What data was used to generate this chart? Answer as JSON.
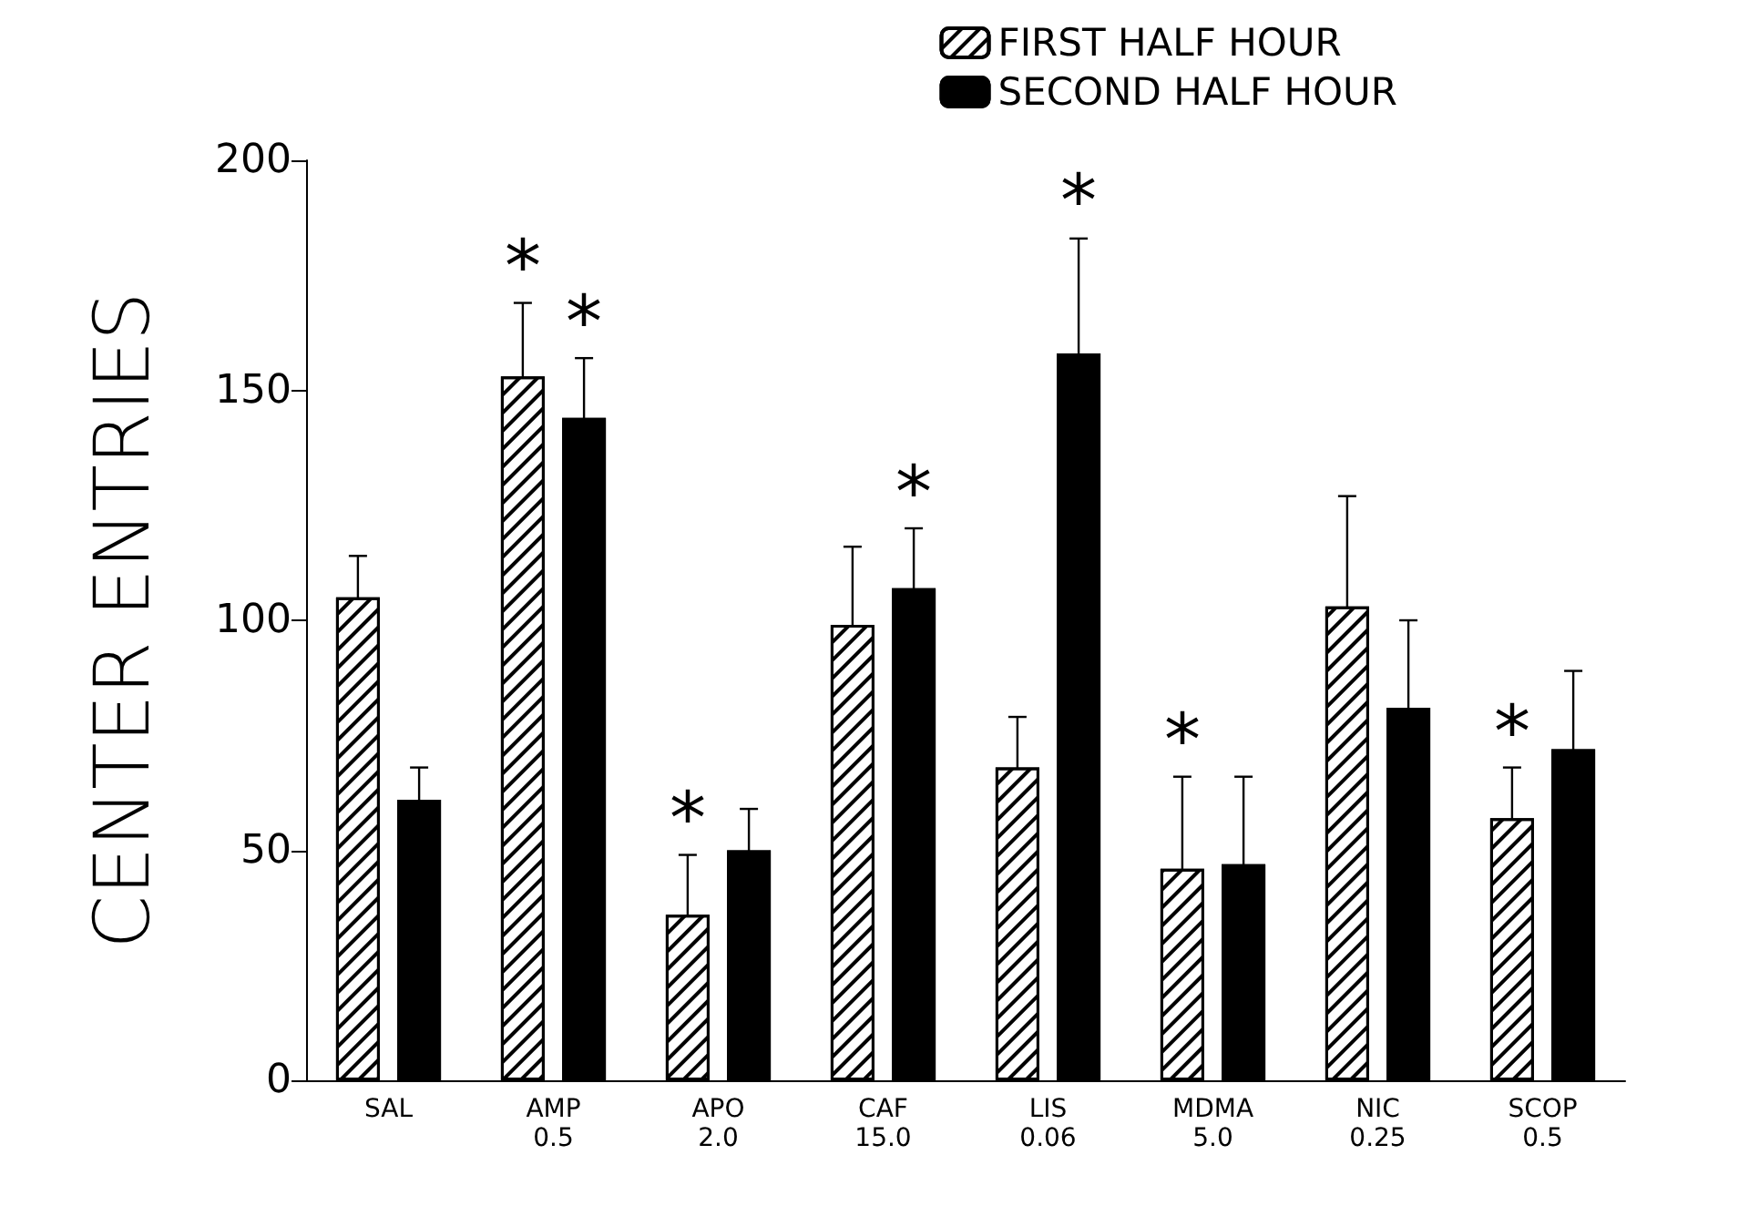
{
  "chart_data": {
    "type": "bar",
    "ylabel": "CENTER ENTRIES",
    "categories": [
      "SAL",
      "AMP\n0.5",
      "APO\n2.0",
      "CAF\n15.0",
      "LIS\n0.06",
      "MDMA\n5.0",
      "NIC\n0.25",
      "SCOP\n0.5"
    ],
    "series": [
      {
        "name": "FIRST HALF HOUR",
        "color": "#ffffff",
        "values": [
          105,
          153,
          36,
          99,
          68,
          46,
          103,
          57
        ],
        "errors": [
          9,
          16,
          13,
          17,
          11,
          20,
          24,
          11
        ],
        "value_labels": [
          null,
          "*",
          "*",
          null,
          null,
          "*",
          null,
          "*"
        ]
      },
      {
        "name": "SECOND HALF HOUR",
        "color": "#000000",
        "values": [
          61,
          144,
          50,
          107,
          158,
          47,
          81,
          72
        ],
        "errors": [
          7,
          13,
          9,
          13,
          25,
          19,
          19,
          17
        ],
        "value_labels": [
          null,
          "*",
          null,
          "*",
          "*",
          null,
          null,
          null
        ]
      }
    ],
    "ylim": [
      0,
      200
    ],
    "yticks": [
      0,
      50,
      100,
      150,
      200
    ],
    "grid": false,
    "legend": "top right"
  }
}
